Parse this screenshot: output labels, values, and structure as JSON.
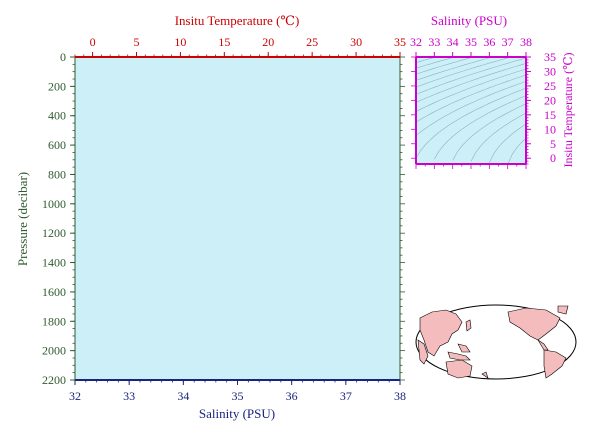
{
  "colors": {
    "panel_fill": "#cdeff8",
    "temperature_axis": "#cc0000",
    "pressure_axis": "#2e5b2e",
    "salinity_axis": "#1a237e",
    "ts_axis": "#cc00cc",
    "contour": "#8fb2c2",
    "land": "#f4bcbc",
    "ocean": "#ffffff"
  },
  "chart_data": [
    {
      "type": "line",
      "panel": "profile",
      "series": [],
      "xlabel_bottom": "Salinity (PSU)",
      "xlim_bottom": [
        32,
        38
      ],
      "xticks_bottom": [
        "32",
        "33",
        "34",
        "35",
        "36",
        "37",
        "38"
      ],
      "xlabel_top": "Insitu Temperature (℃)",
      "xlim_top": [
        -2,
        35
      ],
      "xticks_top": [
        "0",
        "5",
        "10",
        "15",
        "20",
        "25",
        "30",
        "35"
      ],
      "ylabel": "Pressure (decibar)",
      "ylim": [
        2200,
        0
      ],
      "yticks": [
        "0",
        "200",
        "400",
        "600",
        "800",
        "1000",
        "1200",
        "1400",
        "1600",
        "1800",
        "2000",
        "2200"
      ],
      "grid": false
    },
    {
      "type": "scatter",
      "panel": "ts_diagram",
      "series": [],
      "xlabel": "Salinity (PSU)",
      "xlim": [
        32,
        38
      ],
      "xticks": [
        "32",
        "33",
        "34",
        "35",
        "36",
        "37",
        "38"
      ],
      "ylabel": "Insitu Temperature (℃)",
      "ylim": [
        -2,
        35
      ],
      "yticks": [
        "0",
        "5",
        "10",
        "15",
        "20",
        "25",
        "30",
        "35"
      ],
      "grid": false,
      "density_contours": true
    }
  ]
}
